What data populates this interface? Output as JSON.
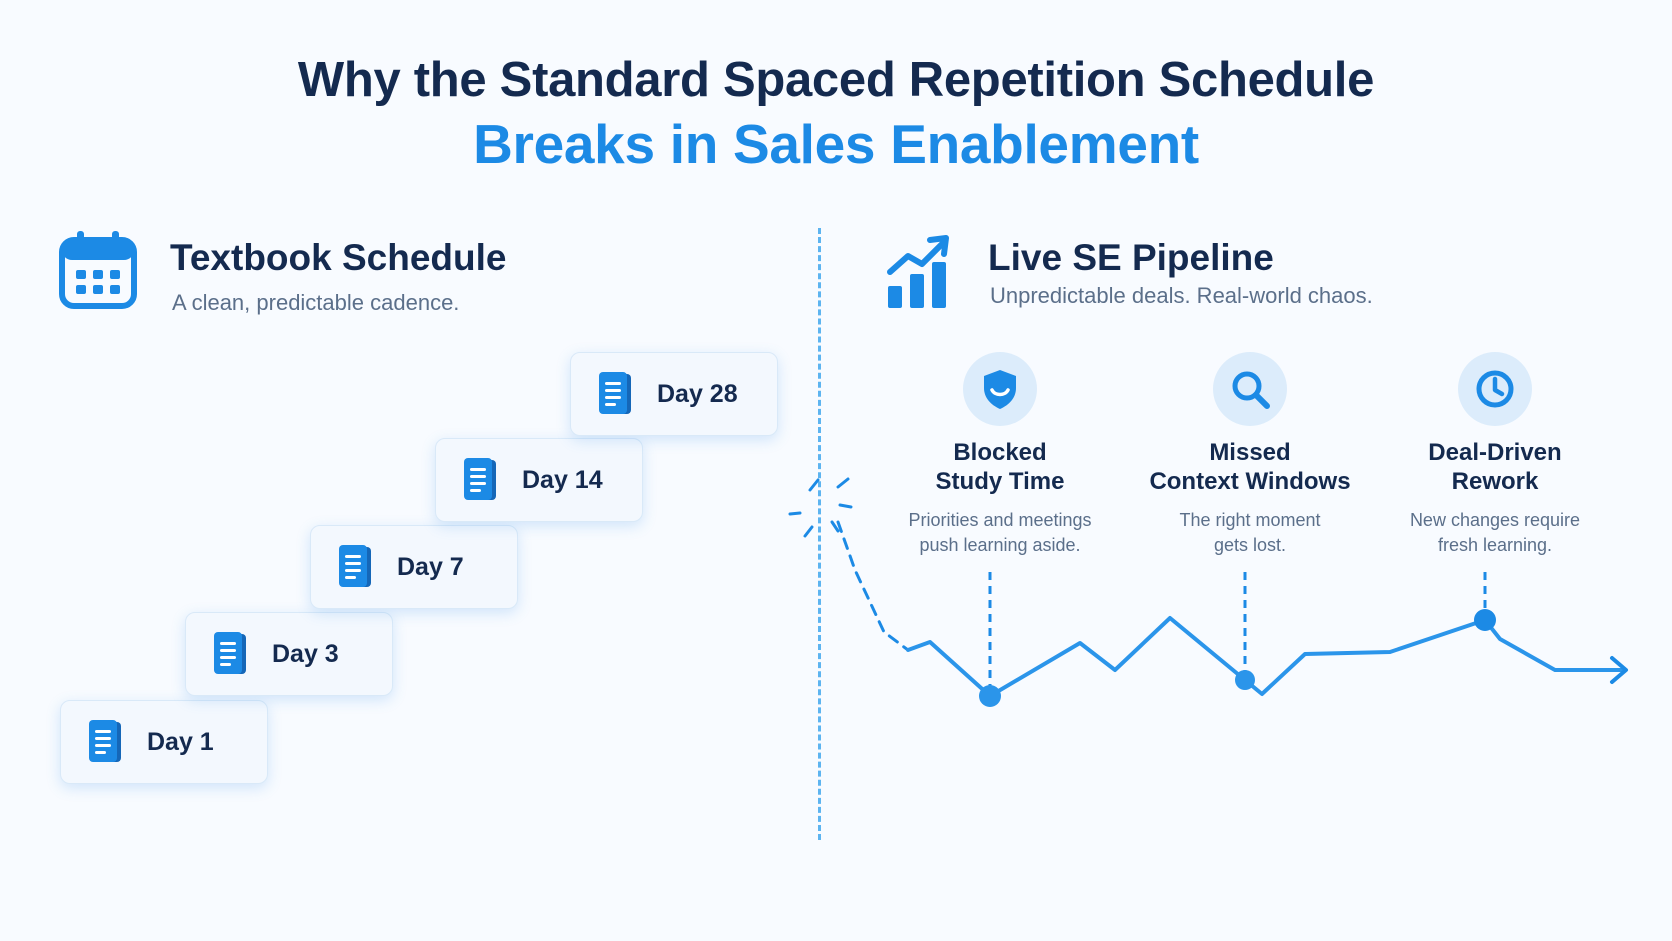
{
  "title": {
    "line1": "Why the Standard Spaced Repetition Schedule",
    "line2": "Breaks in Sales Enablement"
  },
  "left": {
    "icon": "calendar-icon",
    "heading": "Textbook Schedule",
    "subheading": "A clean, predictable cadence.",
    "steps": [
      {
        "label": "Day 1",
        "icon": "document-icon"
      },
      {
        "label": "Day 3",
        "icon": "document-icon"
      },
      {
        "label": "Day 7",
        "icon": "document-icon"
      },
      {
        "label": "Day 14",
        "icon": "document-icon"
      },
      {
        "label": "Day 28",
        "icon": "document-icon"
      }
    ]
  },
  "right": {
    "icon": "growth-chart-icon",
    "heading": "Live SE Pipeline",
    "subheading": "Unpredictable deals. Real-world chaos.",
    "disruptions": [
      {
        "icon": "shield-icon",
        "title_line1": "Blocked",
        "title_line2": "Study Time",
        "text_line1": "Priorities and meetings",
        "text_line2": "push learning aside."
      },
      {
        "icon": "search-icon",
        "title_line1": "Missed",
        "title_line2": "Context Windows",
        "text_line1": "The right moment",
        "text_line2": "gets lost."
      },
      {
        "icon": "clock-icon",
        "title_line1": "Deal-Driven",
        "title_line2": "Rework",
        "text_line1": "New changes require",
        "text_line2": "fresh learning."
      }
    ]
  },
  "colors": {
    "navy": "#142a4f",
    "accent_blue": "#1c8ae5",
    "muted_text": "#5b6f8a",
    "light_blue": "#dcecfb"
  }
}
